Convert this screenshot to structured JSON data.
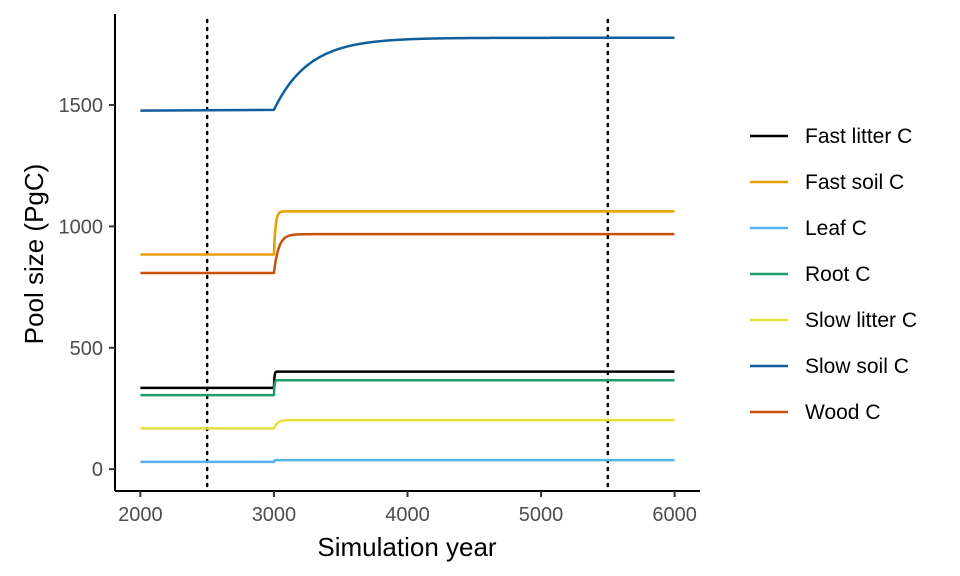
{
  "chart_data": {
    "type": "line",
    "xlabel": "Simulation year",
    "ylabel": "Pool size (PgC)",
    "xlim": [
      1810,
      6190
    ],
    "ylim": [
      -90,
      1875
    ],
    "xticks": [
      2000,
      3000,
      4000,
      5000,
      6000
    ],
    "yticks": [
      0,
      500,
      1000,
      1500
    ],
    "grid": false,
    "legend_position": "right",
    "vlines": [
      2500,
      5500
    ],
    "series": [
      {
        "name": "Fast litter C",
        "color": "#000000",
        "before": 335,
        "after": 402,
        "tau": 4
      },
      {
        "name": "Fast soil C",
        "color": "#E69F00",
        "before": 884,
        "after": 1062,
        "tau": 12
      },
      {
        "name": "Leaf C",
        "color": "#56B4E9",
        "before": 30,
        "after": 37,
        "tau": 3
      },
      {
        "name": "Root C",
        "color": "#1B9E6B",
        "before": 305,
        "after": 366,
        "tau": 4
      },
      {
        "name": "Slow litter C",
        "color": "#E8E03A",
        "before": 168,
        "after": 202,
        "tau": 25
      },
      {
        "name": "Slow soil C",
        "color": "#0E5E9E",
        "before": 1480,
        "after": 1777,
        "tau": 260,
        "pre_start": 1477
      },
      {
        "name": "Wood C",
        "color": "#C9510C",
        "before": 808,
        "after": 968,
        "tau": 35
      }
    ]
  }
}
